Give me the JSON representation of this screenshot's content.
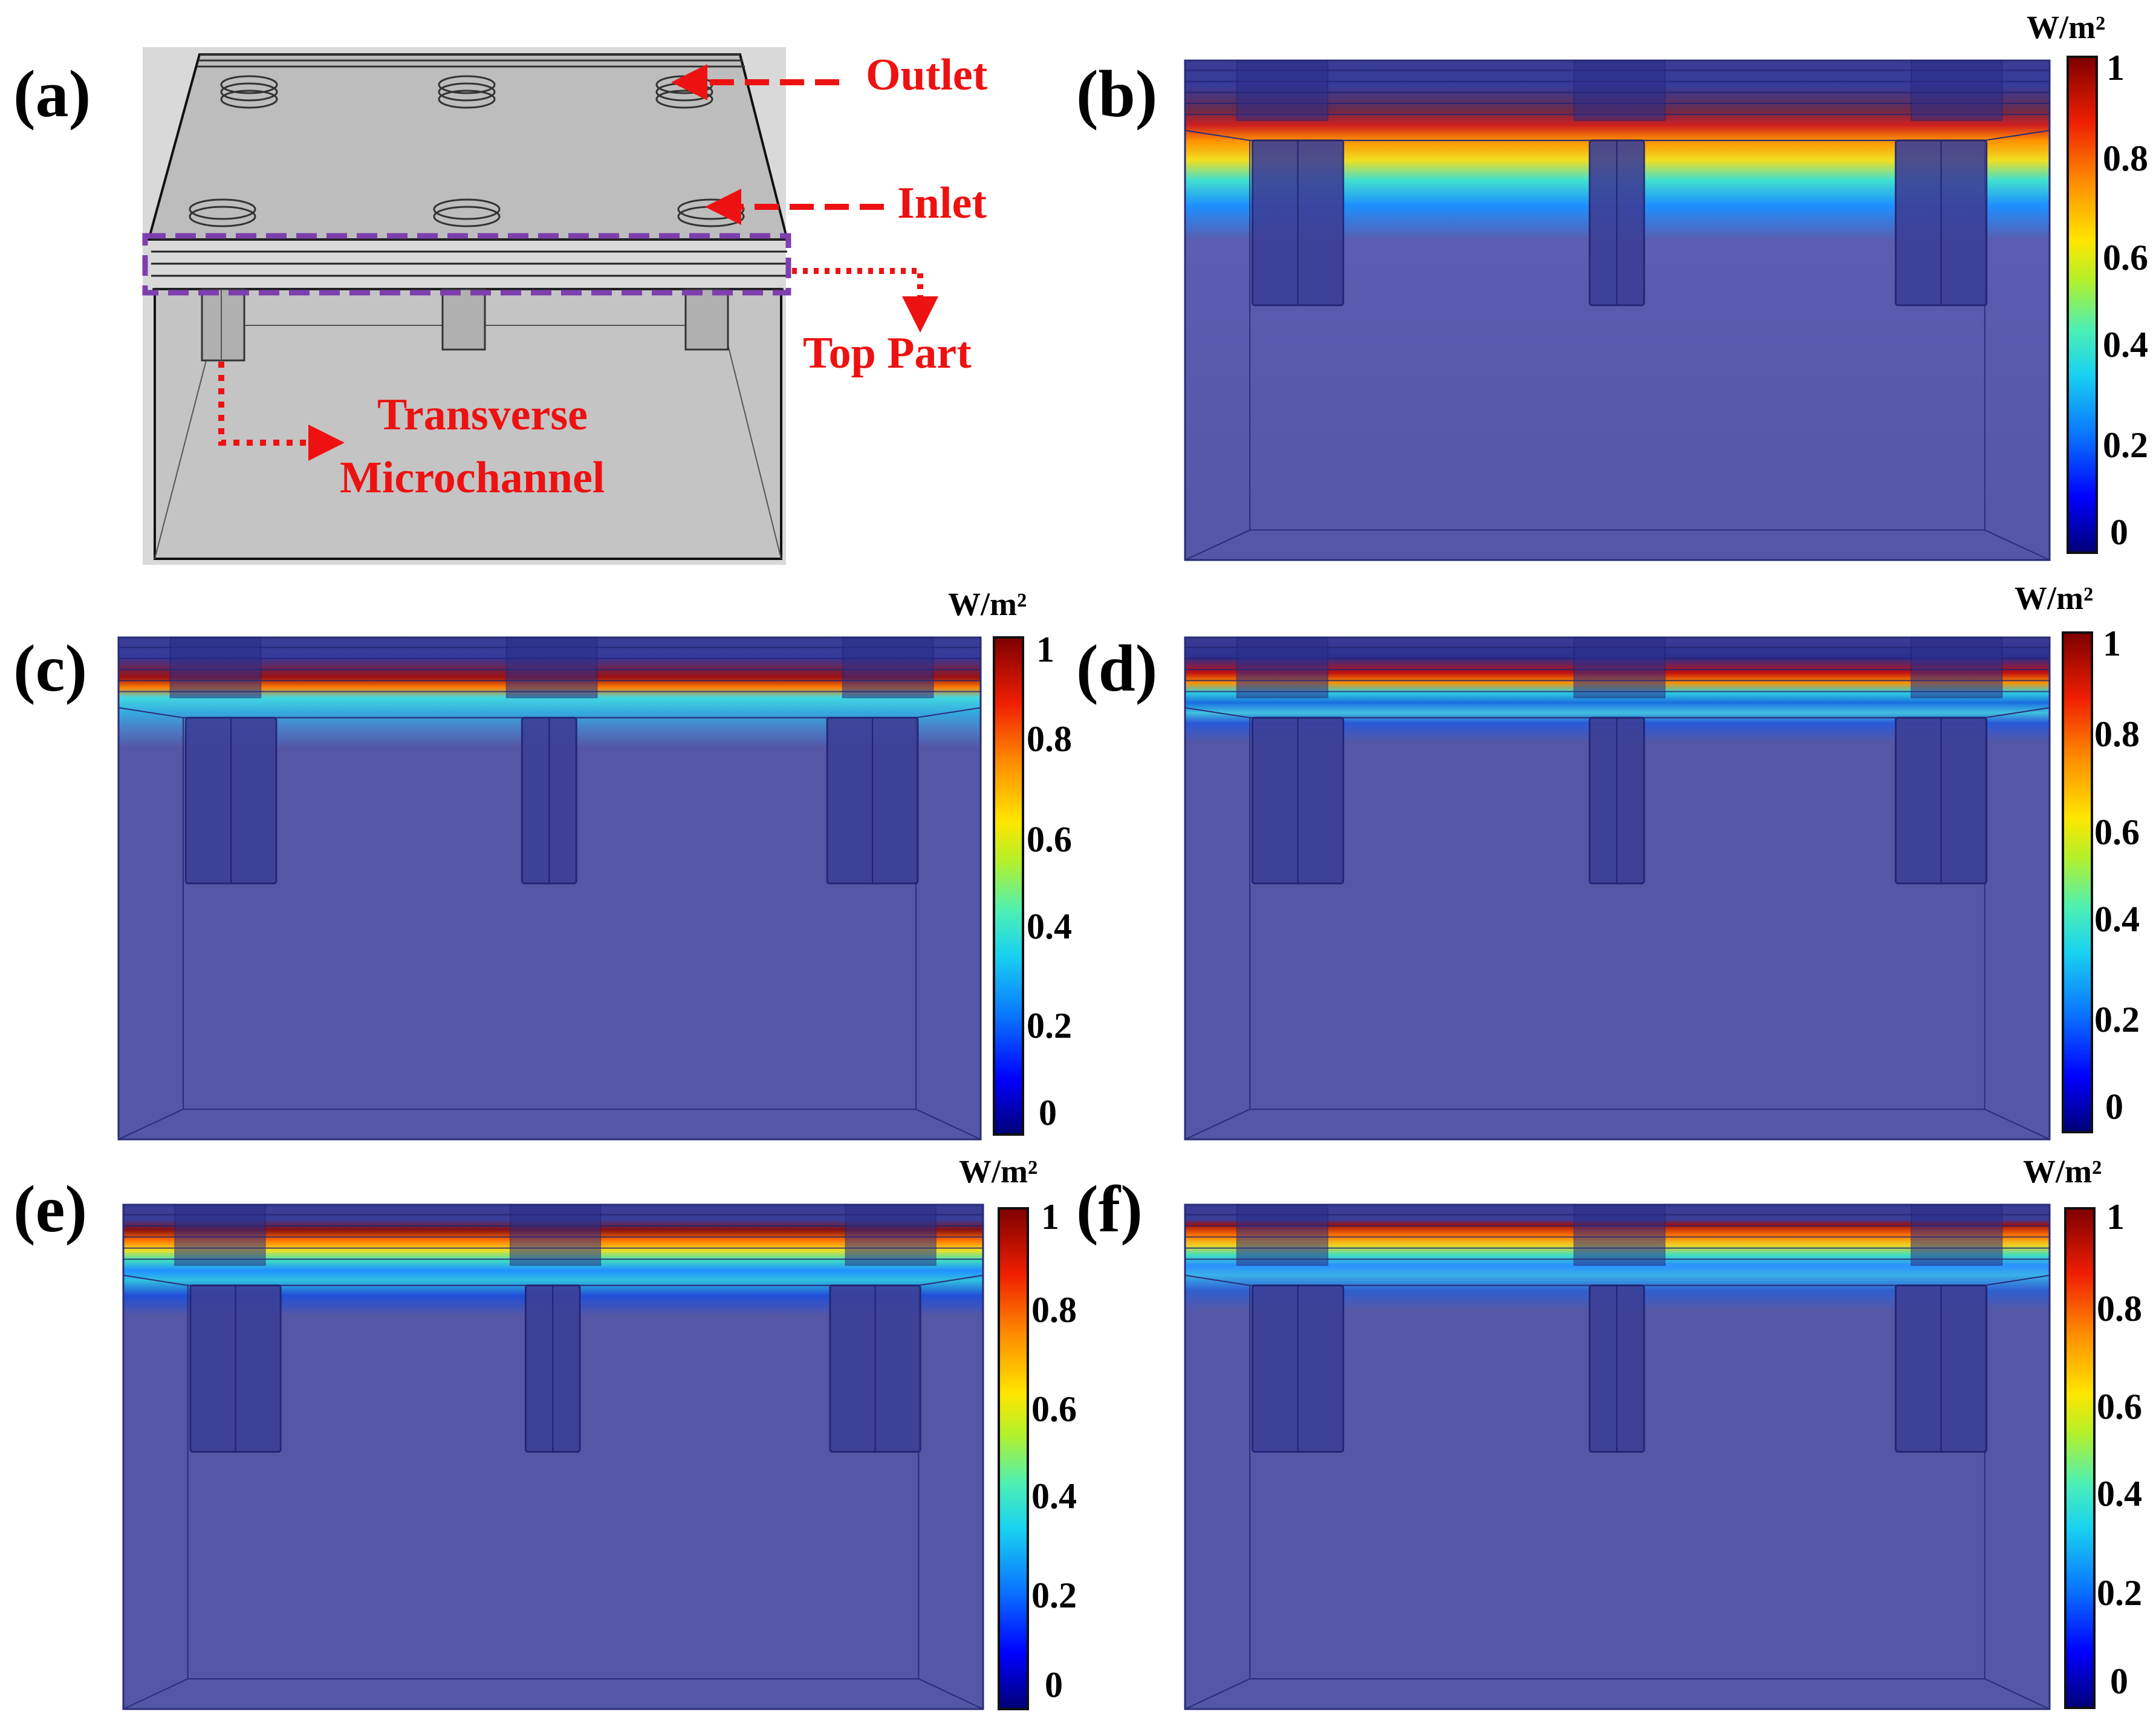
{
  "panels": {
    "a": {
      "label": "(a)",
      "annotations": {
        "outlet": "Outlet",
        "inlet": "Inlet",
        "top_part": "Top Part",
        "transverse_1": "Transverse",
        "transverse_2": "Microchannel"
      }
    },
    "b": {
      "label": "(b)"
    },
    "c": {
      "label": "(c)"
    },
    "d": {
      "label": "(d)"
    },
    "e": {
      "label": "(e)"
    },
    "f": {
      "label": "(f)"
    }
  },
  "colorbar": {
    "unit": "W/m²",
    "ticks": [
      "1",
      "0.8",
      "0.6",
      "0.4",
      "0.2",
      "0"
    ],
    "colors": [
      "#00007a",
      "#0000ff",
      "#0a78ff",
      "#19d2f0",
      "#4df0b4",
      "#b4f02a",
      "#ffe600",
      "#ff8c00",
      "#f01e00",
      "#7f0000"
    ]
  },
  "colors": {
    "annotation_red": "#ee1111",
    "top_part_box": "#7e3fae",
    "body_blue": "#5457a6",
    "channel_blue": "#3c3f97",
    "schematic_gray": "#c9c9c9"
  }
}
